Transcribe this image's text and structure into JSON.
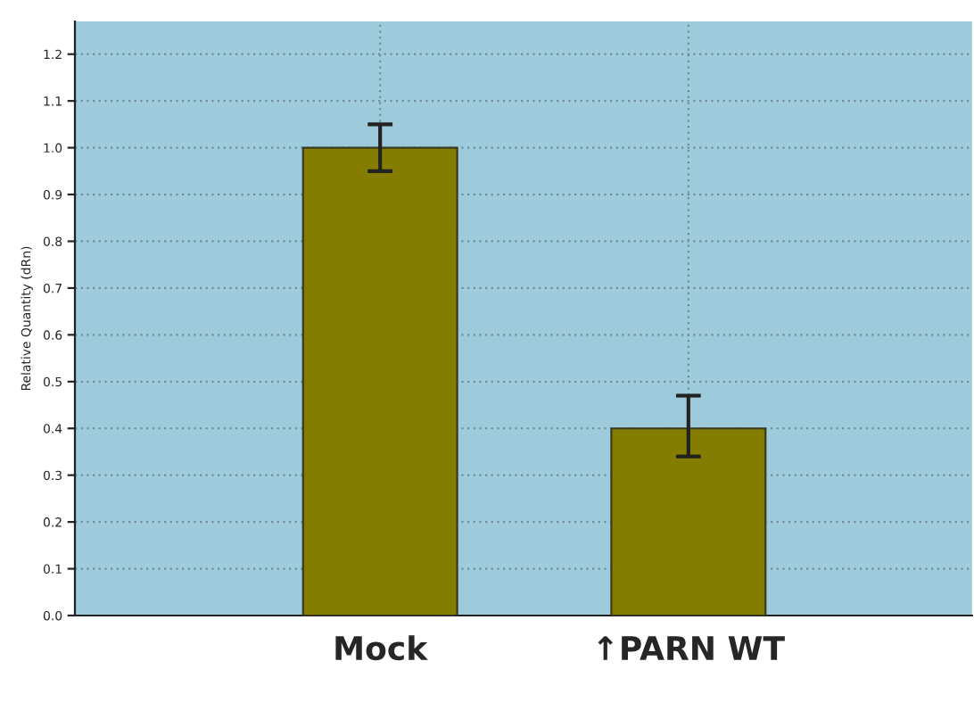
{
  "chart_data": {
    "type": "bar",
    "ylabel": "Relative Quantity (dRn)",
    "categories": [
      "Mock",
      "↑PARN WT"
    ],
    "values": [
      1.0,
      0.4
    ],
    "errors": [
      [
        0.95,
        1.05
      ],
      [
        0.34,
        0.47
      ]
    ],
    "color": "#857d00",
    "ylim": [
      0,
      1.27
    ],
    "yticks": [
      {
        "value": 0,
        "label": "0.0"
      },
      0.1,
      0.2,
      0.3,
      0.4,
      0.5,
      0.6,
      0.7,
      0.8,
      0.9,
      {
        "value": 1.0,
        "label": "1.0"
      },
      1.1,
      1.2
    ],
    "grid": true
  }
}
